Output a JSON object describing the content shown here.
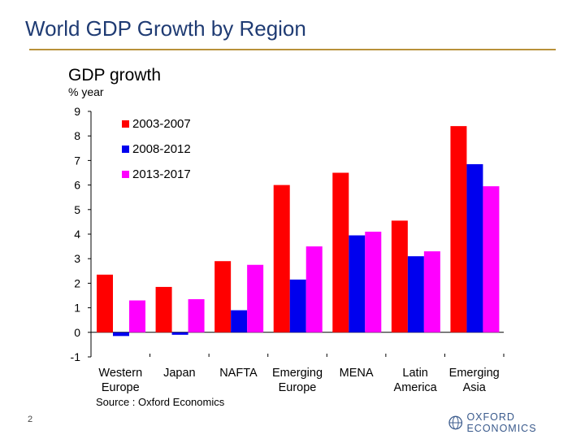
{
  "slide": {
    "title": "World GDP Growth by Region",
    "page_number": "2",
    "logo_text": "OXFORD ECONOMICS",
    "accent_color": "#b8913a",
    "title_color": "#1f3b73"
  },
  "chart_data": {
    "type": "bar",
    "title": "GDP growth",
    "ylabel": "% year",
    "xlabel": "",
    "source": "Source : Oxford Economics",
    "categories": [
      [
        "Western",
        "Europe"
      ],
      [
        "Japan"
      ],
      [
        "NAFTA"
      ],
      [
        "Emerging",
        "Europe"
      ],
      [
        "MENA"
      ],
      [
        "Latin",
        "America"
      ],
      [
        "Emerging",
        "Asia"
      ]
    ],
    "series": [
      {
        "name": "2003-2007",
        "color": "#ff0000",
        "values": [
          2.35,
          1.85,
          2.9,
          6.0,
          6.5,
          4.55,
          8.4
        ]
      },
      {
        "name": "2008-2012",
        "color": "#0000ee",
        "values": [
          -0.15,
          -0.1,
          0.9,
          2.15,
          3.95,
          3.1,
          6.85
        ]
      },
      {
        "name": "2013-2017",
        "color": "#ff00ff",
        "values": [
          1.3,
          1.35,
          2.75,
          3.5,
          4.1,
          3.3,
          5.95
        ]
      }
    ],
    "ylim": [
      -1,
      9
    ],
    "yticks": [
      9,
      8,
      7,
      6,
      5,
      4,
      3,
      2,
      1,
      0,
      -1
    ],
    "grid": false,
    "legend_position": "top-left"
  }
}
